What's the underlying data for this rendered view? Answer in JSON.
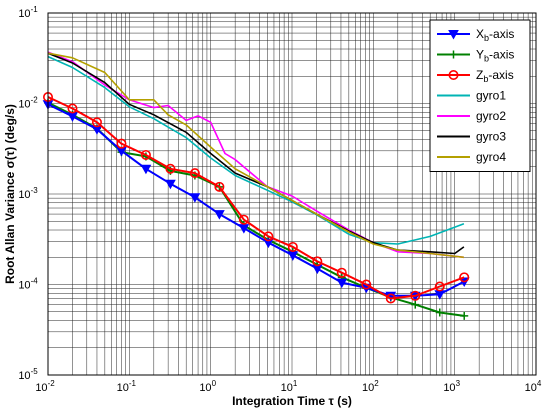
{
  "chart_data": {
    "type": "line",
    "xlabel": "Integration Time τ (s)",
    "ylabel": "Root Allan Variance σ(τ)  (deg/s)",
    "xscale": "log",
    "yscale": "log",
    "xlim": [
      0.01,
      10000
    ],
    "ylim": [
      1e-05,
      0.1
    ],
    "grid": true,
    "legend_position": "top-right",
    "x_tick_labels": [
      {
        "base": "10",
        "exp": "-2"
      },
      {
        "base": "10",
        "exp": "-1"
      },
      {
        "base": "10",
        "exp": "0"
      },
      {
        "base": "10",
        "exp": "1"
      },
      {
        "base": "10",
        "exp": "2"
      },
      {
        "base": "10",
        "exp": "3"
      },
      {
        "base": "10",
        "exp": "4"
      }
    ],
    "y_tick_labels": [
      {
        "base": "10",
        "exp": "-5"
      },
      {
        "base": "10",
        "exp": "-4"
      },
      {
        "base": "10",
        "exp": "-3"
      },
      {
        "base": "10",
        "exp": "-2"
      },
      {
        "base": "10",
        "exp": "-1"
      }
    ],
    "series": [
      {
        "name": "Xb-axis",
        "name_main": "X",
        "name_sub": "b",
        "name_suffix": "-axis",
        "color": "#0000ff",
        "marker": "triangle-down",
        "x": [
          0.01,
          0.02,
          0.04,
          0.08,
          0.16,
          0.32,
          0.64,
          1.28,
          2.56,
          5.12,
          10.24,
          20.48,
          40.96,
          81.92,
          163.84,
          327.68,
          655.36,
          1310.72
        ],
        "y": [
          0.0098,
          0.0072,
          0.0052,
          0.003,
          0.0019,
          0.0013,
          0.00092,
          0.0006,
          0.00042,
          0.00029,
          0.00021,
          0.00015,
          0.000105,
          9.2e-05,
          7.5e-05,
          7.5e-05,
          7.8e-05,
          0.000108
        ]
      },
      {
        "name": "Yb-axis",
        "name_main": "Y",
        "name_sub": "b",
        "name_suffix": "-axis",
        "color": "#008000",
        "marker": "plus",
        "x": [
          0.01,
          0.02,
          0.04,
          0.08,
          0.16,
          0.32,
          0.64,
          1.28,
          2.56,
          5.12,
          10.24,
          20.48,
          40.96,
          81.92,
          163.84,
          327.68,
          655.36,
          1310.72
        ],
        "y": [
          0.0102,
          0.0075,
          0.0053,
          0.0029,
          0.0026,
          0.0018,
          0.0016,
          0.0012,
          0.00045,
          0.00031,
          0.00023,
          0.000165,
          0.00012,
          9.2e-05,
          7.2e-05,
          6e-05,
          4.9e-05,
          4.5e-05
        ]
      },
      {
        "name": "Zb-axis",
        "name_main": "Z",
        "name_sub": "b",
        "name_suffix": "-axis",
        "color": "#ff0000",
        "marker": "circle",
        "x": [
          0.01,
          0.02,
          0.04,
          0.08,
          0.16,
          0.32,
          0.64,
          1.28,
          2.56,
          5.12,
          10.24,
          20.48,
          40.96,
          81.92,
          163.84,
          327.68,
          655.36,
          1310.72
        ],
        "y": [
          0.0118,
          0.0088,
          0.0062,
          0.0036,
          0.0027,
          0.0019,
          0.0017,
          0.0012,
          0.00052,
          0.00034,
          0.00026,
          0.00018,
          0.000135,
          0.0001,
          7e-05,
          7.5e-05,
          9.5e-05,
          0.00012
        ]
      },
      {
        "name": "gyro1",
        "color": "#00b4b4",
        "marker": "none",
        "x": [
          0.01,
          0.02,
          0.05,
          0.1,
          0.2,
          0.5,
          1,
          2,
          5,
          10,
          20,
          50,
          100,
          200,
          500,
          1300
        ],
        "y": [
          0.033,
          0.025,
          0.015,
          0.0092,
          0.0068,
          0.0042,
          0.0025,
          0.0016,
          0.0011,
          0.00082,
          0.00059,
          0.00036,
          0.00029,
          0.00028,
          0.00034,
          0.00047
        ]
      },
      {
        "name": "gyro2",
        "color": "#ff00ff",
        "marker": "none",
        "x": [
          0.01,
          0.02,
          0.05,
          0.1,
          0.2,
          0.3,
          0.5,
          0.7,
          1,
          1.5,
          2,
          5,
          10,
          20,
          50,
          100,
          200,
          500,
          1300
        ],
        "y": [
          0.037,
          0.029,
          0.016,
          0.011,
          0.009,
          0.0095,
          0.0065,
          0.0073,
          0.0062,
          0.0028,
          0.0024,
          0.0012,
          0.00095,
          0.00065,
          0.0004,
          0.00029,
          0.00023,
          0.00022,
          0.0002
        ]
      },
      {
        "name": "gyro3",
        "color": "#000000",
        "marker": "none",
        "x": [
          0.01,
          0.02,
          0.05,
          0.1,
          0.2,
          0.5,
          1,
          2,
          5,
          10,
          20,
          50,
          100,
          200,
          500,
          1000,
          1300
        ],
        "y": [
          0.036,
          0.028,
          0.017,
          0.0098,
          0.0075,
          0.0048,
          0.0028,
          0.0017,
          0.0012,
          0.00085,
          0.0006,
          0.00039,
          0.00029,
          0.00024,
          0.00023,
          0.00022,
          0.00026
        ]
      },
      {
        "name": "gyro4",
        "color": "#b4a000",
        "marker": "none",
        "x": [
          0.01,
          0.02,
          0.05,
          0.1,
          0.2,
          0.3,
          0.5,
          1,
          2,
          5,
          10,
          20,
          50,
          100,
          200,
          500,
          1300
        ],
        "y": [
          0.036,
          0.032,
          0.022,
          0.011,
          0.011,
          0.0075,
          0.0058,
          0.0033,
          0.0019,
          0.0012,
          0.00085,
          0.0006,
          0.00038,
          0.00028,
          0.00024,
          0.00022,
          0.0002
        ]
      }
    ]
  }
}
